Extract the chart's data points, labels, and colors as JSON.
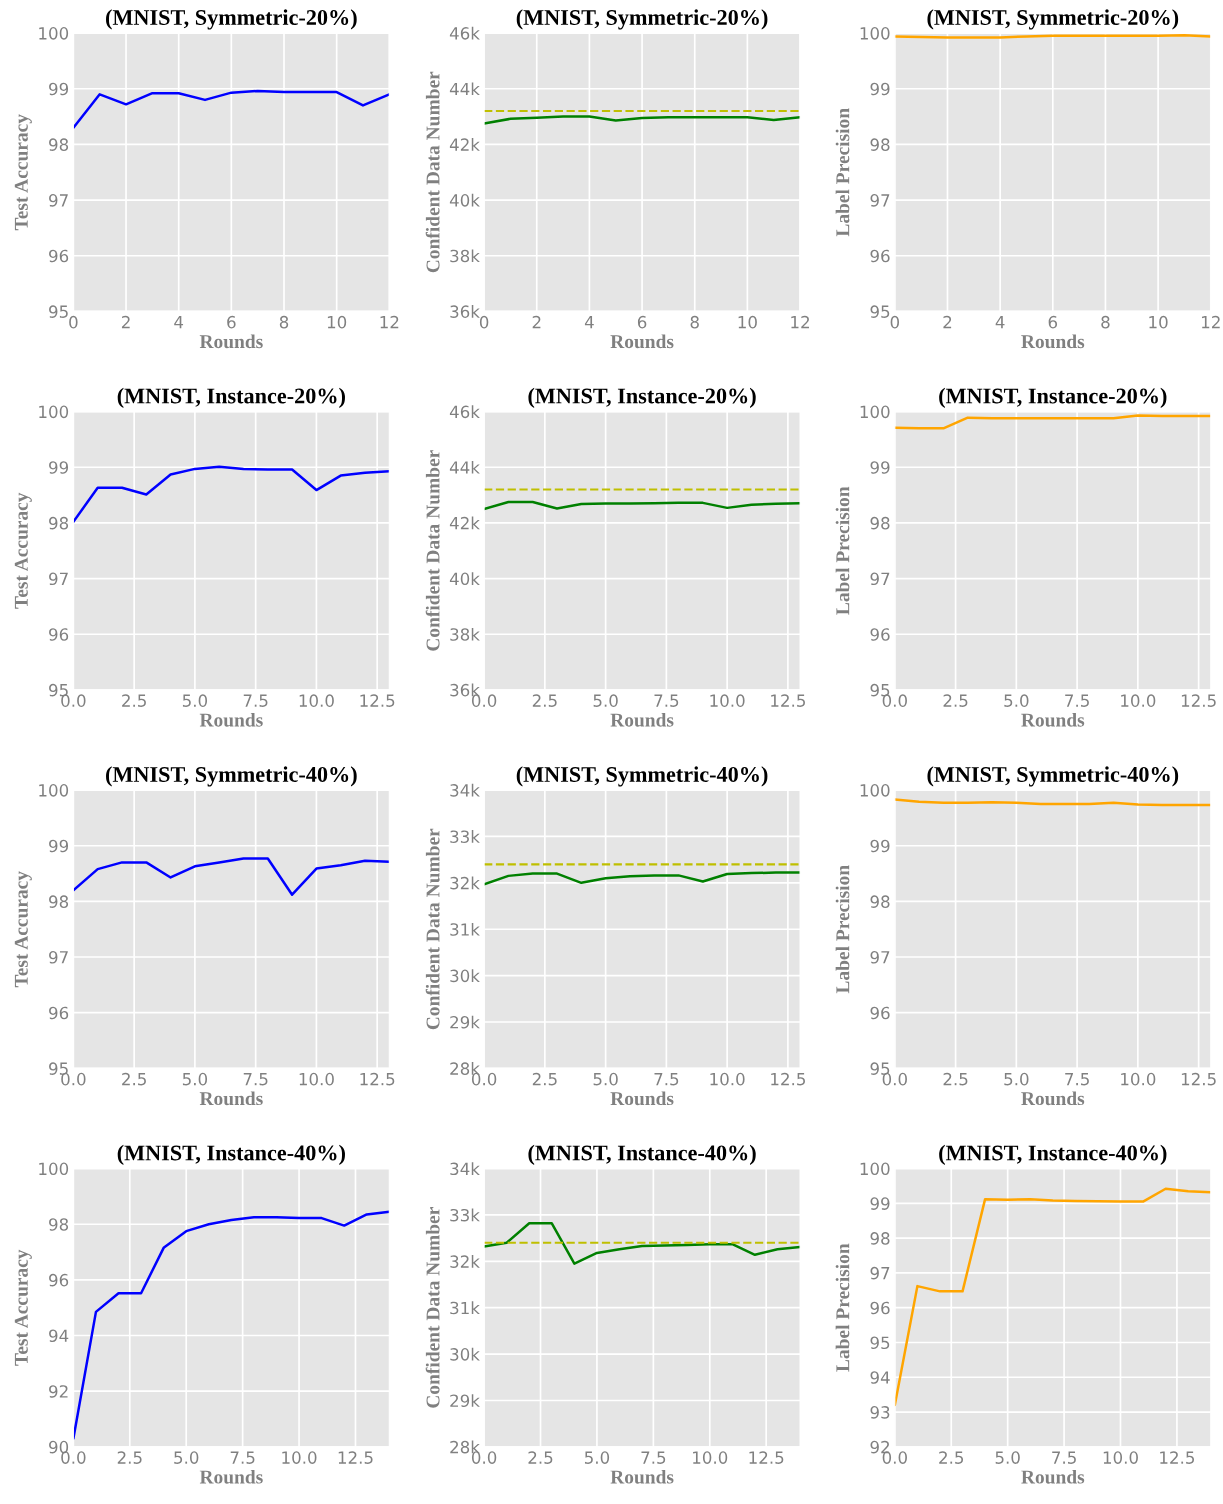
{
  "chart_data": [
    {
      "type": "line",
      "title": "(MNIST, Symmetric-20%)",
      "xlabel": "Rounds",
      "ylabel": "Test Accuracy",
      "grid": true,
      "xlim": [
        0,
        12
      ],
      "xticks": [
        0,
        2,
        4,
        6,
        8,
        10,
        12
      ],
      "ylim": [
        95,
        100
      ],
      "yticks": [
        95,
        96,
        97,
        98,
        99,
        100
      ],
      "x": [
        0,
        1,
        2,
        3,
        4,
        5,
        6,
        7,
        8,
        9,
        10,
        11,
        12
      ],
      "series": [
        {
          "color": "#0000ff",
          "values": [
            98.3,
            98.9,
            98.72,
            98.92,
            98.92,
            98.8,
            98.93,
            98.96,
            98.94,
            98.94,
            98.94,
            98.7,
            98.9
          ]
        }
      ]
    },
    {
      "type": "line",
      "title": "(MNIST, Symmetric-20%)",
      "xlabel": "Rounds",
      "ylabel": "Confident Data Number",
      "grid": true,
      "xlim": [
        0,
        12
      ],
      "xticks": [
        0,
        2,
        4,
        6,
        8,
        10,
        12
      ],
      "ylim": [
        36000,
        46000
      ],
      "yticks": [
        {
          "value": 36000,
          "label": "36k"
        },
        {
          "value": 38000,
          "label": "38k"
        },
        {
          "value": 40000,
          "label": "40k"
        },
        {
          "value": 42000,
          "label": "42k"
        },
        {
          "value": 44000,
          "label": "44k"
        },
        {
          "value": 46000,
          "label": "46k"
        }
      ],
      "x": [
        0,
        1,
        2,
        3,
        4,
        5,
        6,
        7,
        8,
        9,
        10,
        11,
        12
      ],
      "series": [
        {
          "color": "#008000",
          "values": [
            42750,
            42920,
            42960,
            43000,
            43000,
            42860,
            42950,
            42980,
            42980,
            42980,
            42980,
            42880,
            42980
          ]
        }
      ],
      "ref_lines": [
        {
          "axis": "y",
          "value": 43200,
          "color": "#bfbf00",
          "line_style": "dashed"
        }
      ]
    },
    {
      "type": "line",
      "title": "(MNIST, Symmetric-20%)",
      "xlabel": "Rounds",
      "ylabel": "Label Precision",
      "grid": true,
      "xlim": [
        0,
        12
      ],
      "xticks": [
        0,
        2,
        4,
        6,
        8,
        10,
        12
      ],
      "ylim": [
        95,
        100
      ],
      "yticks": [
        95,
        96,
        97,
        98,
        99,
        100
      ],
      "x": [
        0,
        1,
        2,
        3,
        4,
        5,
        6,
        7,
        8,
        9,
        10,
        11,
        12
      ],
      "series": [
        {
          "color": "#ffa500",
          "values": [
            99.94,
            99.93,
            99.92,
            99.92,
            99.92,
            99.94,
            99.95,
            99.95,
            99.95,
            99.95,
            99.95,
            99.96,
            99.94
          ]
        }
      ]
    },
    {
      "type": "line",
      "title": "(MNIST, Instance-20%)",
      "xlabel": "Rounds",
      "ylabel": "Test Accuracy",
      "grid": true,
      "xlim": [
        0,
        13
      ],
      "xticks": [
        {
          "value": 0,
          "label": "0.0"
        },
        {
          "value": 2.5,
          "label": "2.5"
        },
        {
          "value": 5,
          "label": "5.0"
        },
        {
          "value": 7.5,
          "label": "7.5"
        },
        {
          "value": 10,
          "label": "10.0"
        },
        {
          "value": 12.5,
          "label": "12.5"
        }
      ],
      "ylim": [
        95,
        100
      ],
      "yticks": [
        95,
        96,
        97,
        98,
        99,
        100
      ],
      "x": [
        0,
        1,
        2,
        3,
        4,
        5,
        6,
        7,
        8,
        9,
        10,
        11,
        12,
        13
      ],
      "series": [
        {
          "color": "#0000ff",
          "values": [
            98.02,
            98.63,
            98.63,
            98.51,
            98.87,
            98.97,
            99.01,
            98.97,
            98.96,
            98.96,
            98.59,
            98.85,
            98.9,
            98.93
          ]
        }
      ]
    },
    {
      "type": "line",
      "title": "(MNIST, Instance-20%)",
      "xlabel": "Rounds",
      "ylabel": "Confident Data Number",
      "grid": true,
      "xlim": [
        0,
        13
      ],
      "xticks": [
        {
          "value": 0,
          "label": "0.0"
        },
        {
          "value": 2.5,
          "label": "2.5"
        },
        {
          "value": 5,
          "label": "5.0"
        },
        {
          "value": 7.5,
          "label": "7.5"
        },
        {
          "value": 10,
          "label": "10.0"
        },
        {
          "value": 12.5,
          "label": "12.5"
        }
      ],
      "ylim": [
        36000,
        46000
      ],
      "yticks": [
        {
          "value": 36000,
          "label": "36k"
        },
        {
          "value": 38000,
          "label": "38k"
        },
        {
          "value": 40000,
          "label": "40k"
        },
        {
          "value": 42000,
          "label": "42k"
        },
        {
          "value": 44000,
          "label": "44k"
        },
        {
          "value": 46000,
          "label": "46k"
        }
      ],
      "x": [
        0,
        1,
        2,
        3,
        4,
        5,
        6,
        7,
        8,
        9,
        10,
        11,
        12,
        13
      ],
      "series": [
        {
          "color": "#008000",
          "values": [
            42500,
            42750,
            42750,
            42520,
            42680,
            42700,
            42700,
            42710,
            42720,
            42720,
            42540,
            42650,
            42690,
            42710
          ]
        }
      ],
      "ref_lines": [
        {
          "axis": "y",
          "value": 43200,
          "color": "#bfbf00",
          "line_style": "dashed"
        }
      ]
    },
    {
      "type": "line",
      "title": "(MNIST, Instance-20%)",
      "xlabel": "Rounds",
      "ylabel": "Label Precision",
      "grid": true,
      "xlim": [
        0,
        13
      ],
      "xticks": [
        {
          "value": 0,
          "label": "0.0"
        },
        {
          "value": 2.5,
          "label": "2.5"
        },
        {
          "value": 5,
          "label": "5.0"
        },
        {
          "value": 7.5,
          "label": "7.5"
        },
        {
          "value": 10,
          "label": "10.0"
        },
        {
          "value": 12.5,
          "label": "12.5"
        }
      ],
      "ylim": [
        95,
        100
      ],
      "yticks": [
        95,
        96,
        97,
        98,
        99,
        100
      ],
      "x": [
        0,
        1,
        2,
        3,
        4,
        5,
        6,
        7,
        8,
        9,
        10,
        11,
        12,
        13
      ],
      "series": [
        {
          "color": "#ffa500",
          "values": [
            99.71,
            99.7,
            99.7,
            99.89,
            99.88,
            99.88,
            99.88,
            99.88,
            99.88,
            99.88,
            99.93,
            99.92,
            99.92,
            99.92
          ]
        }
      ]
    },
    {
      "type": "line",
      "title": "(MNIST, Symmetric-40%)",
      "xlabel": "Rounds",
      "ylabel": "Test Accuracy",
      "grid": true,
      "xlim": [
        0,
        13
      ],
      "xticks": [
        {
          "value": 0,
          "label": "0.0"
        },
        {
          "value": 2.5,
          "label": "2.5"
        },
        {
          "value": 5,
          "label": "5.0"
        },
        {
          "value": 7.5,
          "label": "7.5"
        },
        {
          "value": 10,
          "label": "10.0"
        },
        {
          "value": 12.5,
          "label": "12.5"
        }
      ],
      "ylim": [
        95,
        100
      ],
      "yticks": [
        95,
        96,
        97,
        98,
        99,
        100
      ],
      "x": [
        0,
        1,
        2,
        3,
        4,
        5,
        6,
        7,
        8,
        9,
        10,
        11,
        12,
        13
      ],
      "series": [
        {
          "color": "#0000ff",
          "values": [
            98.2,
            98.58,
            98.7,
            98.7,
            98.43,
            98.63,
            98.7,
            98.77,
            98.77,
            98.12,
            98.59,
            98.65,
            98.73,
            98.71
          ]
        }
      ]
    },
    {
      "type": "line",
      "title": "(MNIST, Symmetric-40%)",
      "xlabel": "Rounds",
      "ylabel": "Confident Data Number",
      "grid": true,
      "xlim": [
        0,
        13
      ],
      "xticks": [
        {
          "value": 0,
          "label": "0.0"
        },
        {
          "value": 2.5,
          "label": "2.5"
        },
        {
          "value": 5,
          "label": "5.0"
        },
        {
          "value": 7.5,
          "label": "7.5"
        },
        {
          "value": 10,
          "label": "10.0"
        },
        {
          "value": 12.5,
          "label": "12.5"
        }
      ],
      "ylim": [
        28000,
        34000
      ],
      "yticks": [
        {
          "value": 28000,
          "label": "28k"
        },
        {
          "value": 29000,
          "label": "29k"
        },
        {
          "value": 30000,
          "label": "30k"
        },
        {
          "value": 31000,
          "label": "31k"
        },
        {
          "value": 32000,
          "label": "32k"
        },
        {
          "value": 33000,
          "label": "33k"
        },
        {
          "value": 34000,
          "label": "34k"
        }
      ],
      "x": [
        0,
        1,
        2,
        3,
        4,
        5,
        6,
        7,
        8,
        9,
        10,
        11,
        12,
        13
      ],
      "series": [
        {
          "color": "#008000",
          "values": [
            31970,
            32150,
            32200,
            32200,
            32000,
            32100,
            32140,
            32160,
            32160,
            32030,
            32190,
            32210,
            32220,
            32220
          ]
        }
      ],
      "ref_lines": [
        {
          "axis": "y",
          "value": 32400,
          "color": "#bfbf00",
          "line_style": "dashed"
        }
      ]
    },
    {
      "type": "line",
      "title": "(MNIST, Symmetric-40%)",
      "xlabel": "Rounds",
      "ylabel": "Label Precision",
      "grid": true,
      "xlim": [
        0,
        13
      ],
      "xticks": [
        {
          "value": 0,
          "label": "0.0"
        },
        {
          "value": 2.5,
          "label": "2.5"
        },
        {
          "value": 5,
          "label": "5.0"
        },
        {
          "value": 7.5,
          "label": "7.5"
        },
        {
          "value": 10,
          "label": "10.0"
        },
        {
          "value": 12.5,
          "label": "12.5"
        }
      ],
      "ylim": [
        95,
        100
      ],
      "yticks": [
        95,
        96,
        97,
        98,
        99,
        100
      ],
      "x": [
        0,
        1,
        2,
        3,
        4,
        5,
        6,
        7,
        8,
        9,
        10,
        11,
        12,
        13
      ],
      "series": [
        {
          "color": "#ffa500",
          "values": [
            99.83,
            99.79,
            99.77,
            99.77,
            99.78,
            99.77,
            99.75,
            99.75,
            99.75,
            99.77,
            99.74,
            99.73,
            99.73,
            99.73
          ]
        }
      ]
    },
    {
      "type": "line",
      "title": "(MNIST, Instance-40%)",
      "xlabel": "Rounds",
      "ylabel": "Test Accuracy",
      "grid": true,
      "xlim": [
        0,
        14
      ],
      "xticks": [
        {
          "value": 0,
          "label": "0.0"
        },
        {
          "value": 2.5,
          "label": "2.5"
        },
        {
          "value": 5,
          "label": "5.0"
        },
        {
          "value": 7.5,
          "label": "7.5"
        },
        {
          "value": 10,
          "label": "10.0"
        },
        {
          "value": 12.5,
          "label": "12.5"
        }
      ],
      "ylim": [
        90,
        100
      ],
      "yticks": [
        90,
        92,
        94,
        96,
        98,
        100
      ],
      "x": [
        0,
        1,
        2,
        3,
        4,
        5,
        6,
        7,
        8,
        9,
        10,
        11,
        12,
        13,
        14
      ],
      "series": [
        {
          "color": "#0000ff",
          "values": [
            90.3,
            94.85,
            95.52,
            95.52,
            97.15,
            97.75,
            98.0,
            98.15,
            98.25,
            98.25,
            98.22,
            98.22,
            97.95,
            98.35,
            98.45
          ]
        }
      ]
    },
    {
      "type": "line",
      "title": "(MNIST, Instance-40%)",
      "xlabel": "Rounds",
      "ylabel": "Confident Data Number",
      "grid": true,
      "xlim": [
        0,
        14
      ],
      "xticks": [
        {
          "value": 0,
          "label": "0.0"
        },
        {
          "value": 2.5,
          "label": "2.5"
        },
        {
          "value": 5,
          "label": "5.0"
        },
        {
          "value": 7.5,
          "label": "7.5"
        },
        {
          "value": 10,
          "label": "10.0"
        },
        {
          "value": 12.5,
          "label": "12.5"
        }
      ],
      "ylim": [
        28000,
        34000
      ],
      "yticks": [
        {
          "value": 28000,
          "label": "28k"
        },
        {
          "value": 29000,
          "label": "29k"
        },
        {
          "value": 30000,
          "label": "30k"
        },
        {
          "value": 31000,
          "label": "31k"
        },
        {
          "value": 32000,
          "label": "32k"
        },
        {
          "value": 33000,
          "label": "33k"
        },
        {
          "value": 34000,
          "label": "34k"
        }
      ],
      "x": [
        0,
        1,
        2,
        3,
        4,
        5,
        6,
        7,
        8,
        9,
        10,
        11,
        12,
        13,
        14
      ],
      "series": [
        {
          "color": "#008000",
          "values": [
            32320,
            32400,
            32820,
            32820,
            31950,
            32180,
            32260,
            32330,
            32340,
            32350,
            32370,
            32370,
            32140,
            32260,
            32310
          ]
        }
      ],
      "ref_lines": [
        {
          "axis": "y",
          "value": 32400,
          "color": "#bfbf00",
          "line_style": "dashed"
        }
      ]
    },
    {
      "type": "line",
      "title": "(MNIST, Instance-40%)",
      "xlabel": "Rounds",
      "ylabel": "Label Precision",
      "grid": true,
      "xlim": [
        0,
        14
      ],
      "xticks": [
        {
          "value": 0,
          "label": "0.0"
        },
        {
          "value": 2.5,
          "label": "2.5"
        },
        {
          "value": 5,
          "label": "5.0"
        },
        {
          "value": 7.5,
          "label": "7.5"
        },
        {
          "value": 10,
          "label": "10.0"
        },
        {
          "value": 12.5,
          "label": "12.5"
        }
      ],
      "ylim": [
        92,
        100
      ],
      "yticks": [
        92,
        93,
        94,
        95,
        96,
        97,
        98,
        99,
        100
      ],
      "x": [
        0,
        1,
        2,
        3,
        4,
        5,
        6,
        7,
        8,
        9,
        10,
        11,
        12,
        13,
        14
      ],
      "series": [
        {
          "color": "#ffa500",
          "values": [
            93.2,
            96.62,
            96.47,
            96.47,
            99.12,
            99.1,
            99.12,
            99.08,
            99.07,
            99.06,
            99.05,
            99.05,
            99.42,
            99.35,
            99.32
          ]
        }
      ]
    }
  ]
}
